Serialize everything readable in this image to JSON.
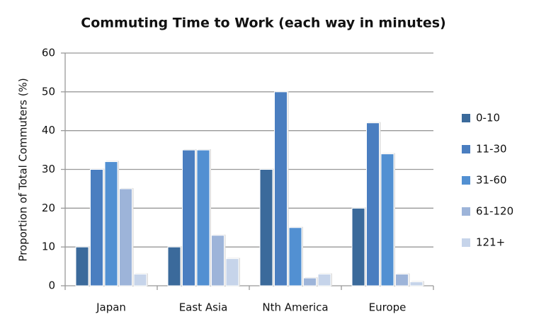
{
  "chart_data": {
    "type": "bar",
    "title": "Commuting Time to Work (each way in minutes)",
    "y_label": "Proportion of Total Commuters (%)",
    "categories": [
      "Japan",
      "East Asia",
      "Nth America",
      "Europe"
    ],
    "series": [
      {
        "name": "0-10",
        "color": "#3b6a9b",
        "values": [
          10,
          10,
          30,
          20
        ]
      },
      {
        "name": "11-30",
        "color": "#4a7ec0",
        "values": [
          30,
          35,
          50,
          42
        ]
      },
      {
        "name": "31-60",
        "color": "#5290d2",
        "values": [
          32,
          35,
          15,
          34
        ]
      },
      {
        "name": "61-120",
        "color": "#9db4d9",
        "values": [
          25,
          13,
          2,
          3
        ]
      },
      {
        "name": "121+",
        "color": "#c6d4ea",
        "values": [
          3,
          7,
          3,
          1
        ]
      }
    ],
    "ylim": [
      0,
      60
    ],
    "yticks": [
      0,
      10,
      20,
      30,
      40,
      50,
      60
    ],
    "grid": true,
    "legend": "right"
  }
}
